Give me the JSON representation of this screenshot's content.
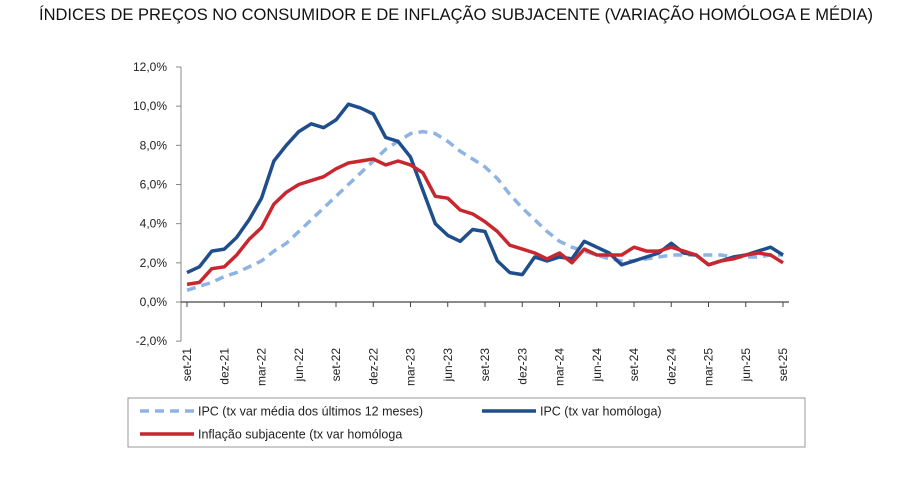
{
  "chart_data": {
    "type": "line",
    "title": "ÍNDICES DE PREÇOS NO CONSUMIDOR E DE INFLAÇÃO SUBJACENTE (VARIAÇÃO HOMÓLOGA E MÉDIA)",
    "ylim": [
      -2,
      12
    ],
    "yticks": [
      "-2,0%",
      "0,0%",
      "2,0%",
      "4,0%",
      "6,0%",
      "8,0%",
      "10,0%",
      "12,0%"
    ],
    "xtick_labels": [
      "set-21",
      "dez-21",
      "mar-22",
      "jun-22",
      "set-22",
      "dez-22",
      "mar-23",
      "jun-23",
      "set-23",
      "dez-23",
      "mar-24",
      "jun-24",
      "set-24",
      "dez-24",
      "mar-25",
      "jun-25",
      "set-25"
    ],
    "x_start": "set-21",
    "x_end": "set-25",
    "grid": false,
    "legend": "bottom",
    "series": [
      {
        "name": "IPC (tx var média dos últimos 12 meses)",
        "color": "#8eb4e3",
        "dash": true,
        "values": [
          0.6,
          0.8,
          1.0,
          1.3,
          1.5,
          1.8,
          2.1,
          2.6,
          3.0,
          3.6,
          4.2,
          4.8,
          5.4,
          6.0,
          6.6,
          7.2,
          7.8,
          8.2,
          8.6,
          8.7,
          8.6,
          8.2,
          7.7,
          7.3,
          6.9,
          6.3,
          5.5,
          4.8,
          4.2,
          3.6,
          3.1,
          2.8,
          2.6,
          2.4,
          2.2,
          2.1,
          2.1,
          2.2,
          2.3,
          2.4,
          2.4,
          2.4,
          2.4,
          2.4,
          2.3,
          2.3,
          2.3,
          2.4,
          2.4
        ]
      },
      {
        "name": "IPC (tx var homóloga)",
        "color": "#1f4e8c",
        "dash": false,
        "values": [
          1.5,
          1.8,
          2.6,
          2.7,
          3.3,
          4.2,
          5.3,
          7.2,
          8.0,
          8.7,
          9.1,
          8.9,
          9.3,
          10.1,
          9.9,
          9.6,
          8.4,
          8.2,
          7.4,
          5.7,
          4.0,
          3.4,
          3.1,
          3.7,
          3.6,
          2.1,
          1.5,
          1.4,
          2.3,
          2.1,
          2.3,
          2.2,
          3.1,
          2.8,
          2.5,
          1.9,
          2.1,
          2.3,
          2.5,
          3.0,
          2.5,
          2.4,
          1.9,
          2.1,
          2.3,
          2.4,
          2.6,
          2.8,
          2.4
        ]
      },
      {
        "name": "Inflação subjacente (tx var homóloga",
        "color": "#c8272f",
        "dash": false,
        "values": [
          0.9,
          1.0,
          1.7,
          1.8,
          2.4,
          3.2,
          3.8,
          5.0,
          5.6,
          6.0,
          6.2,
          6.4,
          6.8,
          7.1,
          7.2,
          7.3,
          7.0,
          7.2,
          7.0,
          6.6,
          5.4,
          5.3,
          4.7,
          4.5,
          4.1,
          3.6,
          2.9,
          2.7,
          2.5,
          2.2,
          2.5,
          2.0,
          2.7,
          2.4,
          2.4,
          2.4,
          2.8,
          2.6,
          2.6,
          2.8,
          2.6,
          2.4,
          1.9,
          2.1,
          2.2,
          2.4,
          2.5,
          2.4,
          2.0
        ]
      }
    ]
  }
}
